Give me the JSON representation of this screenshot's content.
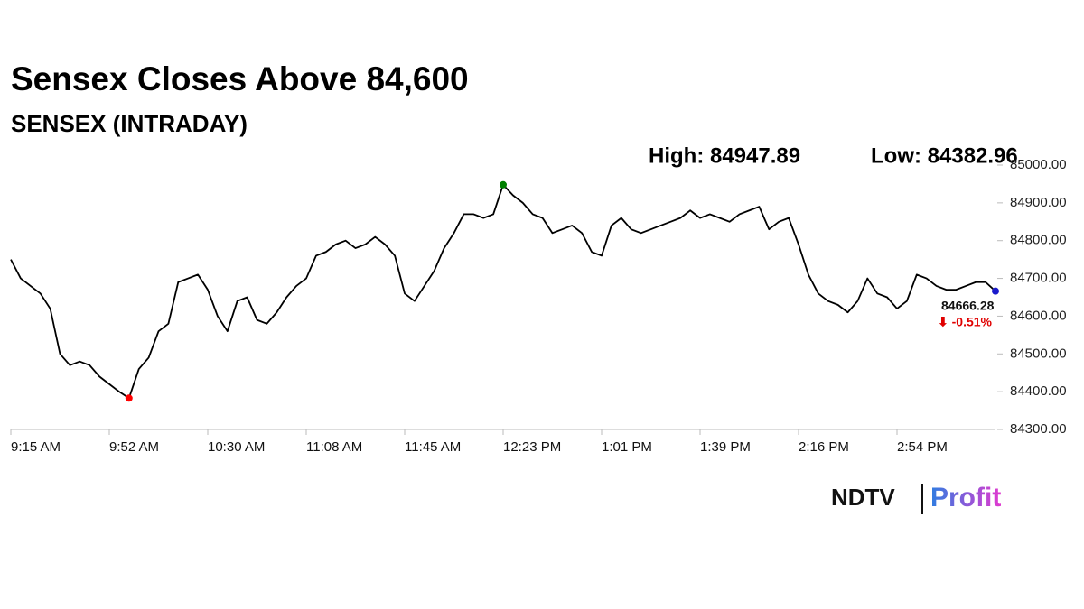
{
  "chart_data": {
    "type": "line",
    "title": "Sensex Closes Above 84,600",
    "subtitle": "SENSEX (INTRADAY)",
    "high_label": "High: 84947.89",
    "low_label": "Low: 84382.96",
    "change_label": "⬇ -0.51%",
    "change_color": "#e00000",
    "high_marker_color": "#008000",
    "low_marker_color": "#ff0000",
    "end_marker_color": "#1a1acc",
    "logo": {
      "left": "NDTV",
      "right": "Profit"
    },
    "x": [
      "9:15 AM",
      null,
      null,
      null,
      null,
      null,
      null,
      null,
      null,
      null,
      "9:52 AM",
      null,
      null,
      null,
      null,
      null,
      null,
      null,
      null,
      null,
      "10:30 AM",
      null,
      null,
      null,
      null,
      null,
      null,
      null,
      null,
      null,
      "11:08 AM",
      null,
      null,
      null,
      null,
      null,
      null,
      null,
      null,
      null,
      "11:45 AM",
      null,
      null,
      null,
      null,
      null,
      null,
      null,
      null,
      null,
      "12:23 PM",
      null,
      null,
      null,
      null,
      null,
      null,
      null,
      null,
      null,
      "1:01 PM",
      null,
      null,
      null,
      null,
      null,
      null,
      null,
      null,
      null,
      "1:39 PM",
      null,
      null,
      null,
      null,
      null,
      null,
      null,
      null,
      null,
      "2:16 PM",
      null,
      null,
      null,
      null,
      null,
      null,
      null,
      null,
      null,
      "2:54 PM",
      null,
      null,
      null,
      null,
      null,
      null,
      null,
      null,
      null,
      null
    ],
    "series": [
      {
        "name": "SENSEX",
        "color": "#000000",
        "values": [
          84750,
          84700,
          84680,
          84660,
          84620,
          84500,
          84470,
          84480,
          84470,
          84440,
          84420,
          84400,
          84382.96,
          84460,
          84490,
          84560,
          84580,
          84690,
          84700,
          84710,
          84670,
          84600,
          84560,
          84640,
          84650,
          84590,
          84580,
          84610,
          84650,
          84680,
          84700,
          84760,
          84770,
          84790,
          84800,
          84780,
          84790,
          84810,
          84790,
          84760,
          84660,
          84640,
          84680,
          84720,
          84780,
          84820,
          84870,
          84870,
          84860,
          84870,
          84947.89,
          84920,
          84900,
          84870,
          84860,
          84820,
          84830,
          84840,
          84820,
          84770,
          84760,
          84840,
          84860,
          84830,
          84820,
          84830,
          84840,
          84850,
          84860,
          84880,
          84860,
          84870,
          84860,
          84850,
          84870,
          84880,
          84890,
          84830,
          84850,
          84860,
          84790,
          84710,
          84660,
          84640,
          84630,
          84610,
          84640,
          84700,
          84660,
          84650,
          84620,
          84640,
          84710,
          84700,
          84680,
          84670,
          84670,
          84680,
          84690,
          84690,
          84666.28
        ]
      }
    ],
    "ylim": [
      84300,
      85000
    ],
    "yticks": [
      {
        "value": 84300,
        "label": "84300.00"
      },
      {
        "value": 84400,
        "label": "84400.00"
      },
      {
        "value": 84500,
        "label": "84500.00"
      },
      {
        "value": 84600,
        "label": "84600.00"
      },
      {
        "value": 84700,
        "label": "84700.00"
      },
      {
        "value": 84800,
        "label": "84800.00"
      },
      {
        "value": 84900,
        "label": "84900.00"
      },
      {
        "value": 85000,
        "label": "85000.00"
      }
    ]
  }
}
